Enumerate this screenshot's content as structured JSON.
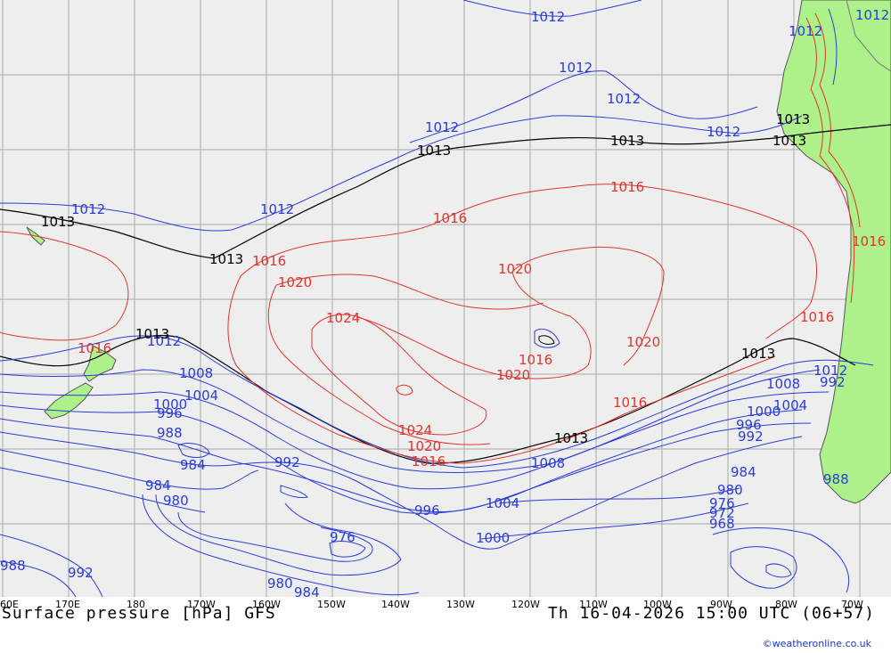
{
  "title": "Surface pressure [hPa] GFS",
  "valid_time": "Th 16-04-2026 15:00 UTC (06+57)",
  "credit": "©weatheronline.co.uk",
  "longitude_labels": [
    "60E",
    "170E",
    "180",
    "170W",
    "160W",
    "150W",
    "140W",
    "130W",
    "120W",
    "110W",
    "100W",
    "90W",
    "80W",
    "70W"
  ],
  "colors": {
    "ocean": "#eeeeee",
    "land": "#aef18a",
    "grid": "#a8a8a8",
    "low": "#2a3cd8",
    "high": "#e0352d",
    "mean": "#000000",
    "coast": "#555555"
  },
  "isobar_labels": {
    "blue": [
      "1012",
      "1012",
      "1012",
      "1012",
      "1012",
      "1012",
      "1012",
      "1012",
      "1012",
      "1012",
      "1012",
      "1008",
      "1008",
      "1008",
      "1004",
      "1004",
      "1004",
      "1000",
      "1000",
      "1000",
      "996",
      "996",
      "996",
      "992",
      "992",
      "992",
      "992",
      "988",
      "988",
      "988",
      "984",
      "984",
      "984",
      "984",
      "980",
      "980",
      "980",
      "976",
      "976",
      "972",
      "968"
    ],
    "red": [
      "1016",
      "1016",
      "1016",
      "1016",
      "1016",
      "1016",
      "1016",
      "1016",
      "1016",
      "1020",
      "1020",
      "1020",
      "1020",
      "1020",
      "1024",
      "1024",
      "1016",
      "1016"
    ],
    "black": [
      "1013",
      "1013",
      "1013",
      "1013",
      "1013",
      "1013",
      "1013",
      "1013",
      "1013"
    ]
  }
}
